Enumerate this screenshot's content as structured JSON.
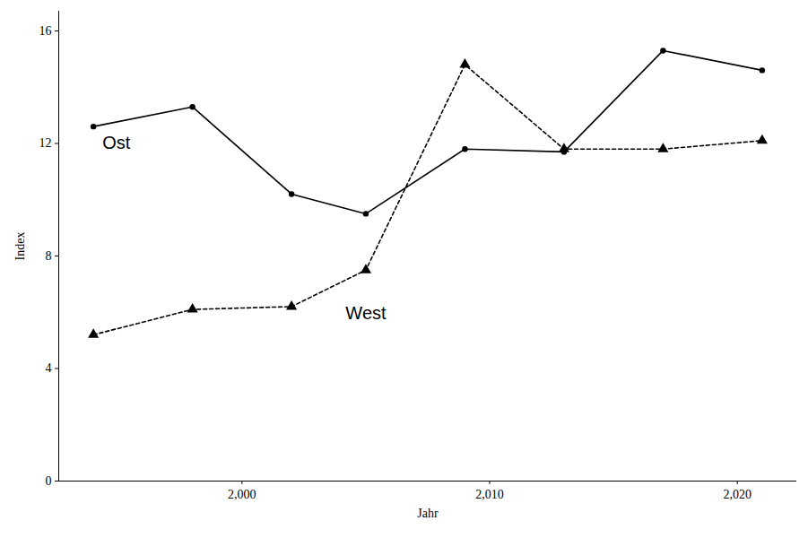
{
  "chart_data": {
    "type": "line",
    "x_label": "Jahr",
    "y_label": "Index",
    "x": [
      1994,
      1998,
      2002,
      2005,
      2009,
      2013,
      2017,
      2021
    ],
    "series": [
      {
        "name": "Ost",
        "color": "#000000",
        "marker": "circle",
        "line_style": "solid",
        "values": [
          12.6,
          13.3,
          10.2,
          9.5,
          11.8,
          11.7,
          15.3,
          14.6
        ]
      },
      {
        "name": "West",
        "color": "#000000",
        "marker": "triangle",
        "line_style": "dashed",
        "values": [
          5.2,
          6.1,
          6.2,
          7.5,
          14.8,
          11.8,
          11.8,
          12.1
        ]
      }
    ],
    "xlim": [
      1992.6,
      2022.4
    ],
    "xticks": [
      2000,
      2010,
      2020
    ],
    "ylim": [
      0,
      16.7
    ],
    "yticks": [
      0,
      4,
      8,
      12,
      16
    ],
    "grid": false
  }
}
